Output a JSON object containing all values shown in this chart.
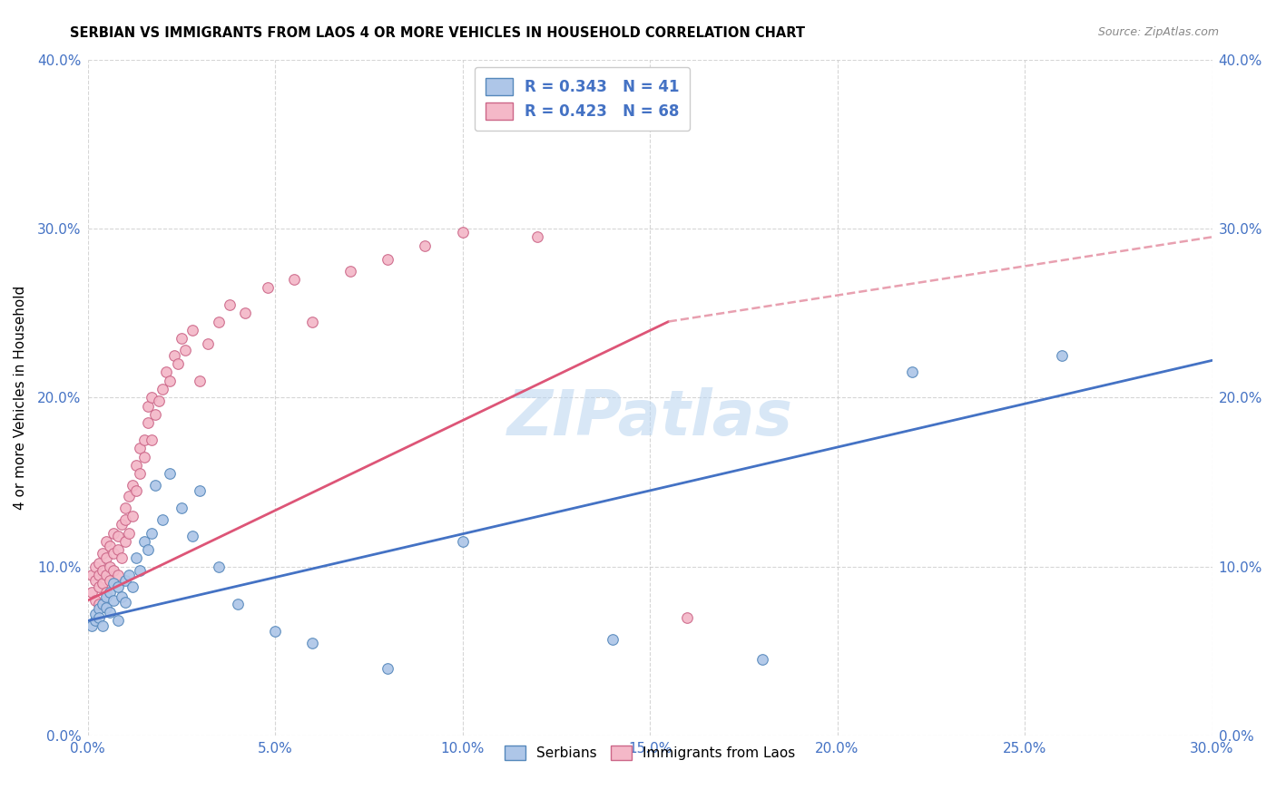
{
  "title": "SERBIAN VS IMMIGRANTS FROM LAOS 4 OR MORE VEHICLES IN HOUSEHOLD CORRELATION CHART",
  "source": "Source: ZipAtlas.com",
  "ylabel": "4 or more Vehicles in Household",
  "xlim": [
    0.0,
    0.3
  ],
  "ylim": [
    0.0,
    0.4
  ],
  "xticks": [
    0.0,
    0.05,
    0.1,
    0.15,
    0.2,
    0.25,
    0.3
  ],
  "yticks": [
    0.0,
    0.1,
    0.2,
    0.3,
    0.4
  ],
  "serbians_label": "Serbians",
  "laos_label": "Immigrants from Laos",
  "serbian_color": "#aec6e8",
  "serbian_edge": "#5588bb",
  "laos_color": "#f4b8c8",
  "laos_edge": "#cc6688",
  "trendline_serbian_color": "#4472c4",
  "trendline_laos_color": "#dd5577",
  "trendline_laos_dashed_color": "#e8a0b0",
  "watermark": "ZIPatlas",
  "r_serbian": "0.343",
  "n_serbian": "41",
  "r_laos": "0.423",
  "n_laos": "68",
  "serbian_x": [
    0.001,
    0.002,
    0.002,
    0.003,
    0.003,
    0.004,
    0.004,
    0.005,
    0.005,
    0.006,
    0.006,
    0.007,
    0.007,
    0.008,
    0.008,
    0.009,
    0.01,
    0.01,
    0.011,
    0.012,
    0.013,
    0.014,
    0.015,
    0.016,
    0.017,
    0.018,
    0.02,
    0.022,
    0.025,
    0.028,
    0.03,
    0.035,
    0.04,
    0.05,
    0.06,
    0.08,
    0.1,
    0.14,
    0.18,
    0.22,
    0.26
  ],
  "serbian_y": [
    0.065,
    0.068,
    0.072,
    0.075,
    0.07,
    0.078,
    0.065,
    0.082,
    0.076,
    0.073,
    0.085,
    0.08,
    0.09,
    0.068,
    0.088,
    0.082,
    0.079,
    0.092,
    0.095,
    0.088,
    0.105,
    0.098,
    0.115,
    0.11,
    0.12,
    0.148,
    0.128,
    0.155,
    0.135,
    0.118,
    0.145,
    0.1,
    0.078,
    0.062,
    0.055,
    0.04,
    0.115,
    0.057,
    0.045,
    0.215,
    0.225
  ],
  "laos_x": [
    0.001,
    0.001,
    0.002,
    0.002,
    0.002,
    0.003,
    0.003,
    0.003,
    0.003,
    0.004,
    0.004,
    0.004,
    0.005,
    0.005,
    0.005,
    0.005,
    0.006,
    0.006,
    0.006,
    0.007,
    0.007,
    0.007,
    0.008,
    0.008,
    0.008,
    0.009,
    0.009,
    0.01,
    0.01,
    0.01,
    0.011,
    0.011,
    0.012,
    0.012,
    0.013,
    0.013,
    0.014,
    0.014,
    0.015,
    0.015,
    0.016,
    0.016,
    0.017,
    0.017,
    0.018,
    0.019,
    0.02,
    0.021,
    0.022,
    0.023,
    0.024,
    0.025,
    0.026,
    0.028,
    0.03,
    0.032,
    0.035,
    0.038,
    0.042,
    0.048,
    0.055,
    0.06,
    0.07,
    0.08,
    0.09,
    0.1,
    0.12,
    0.16
  ],
  "laos_y": [
    0.085,
    0.095,
    0.08,
    0.092,
    0.1,
    0.088,
    0.095,
    0.078,
    0.102,
    0.09,
    0.098,
    0.108,
    0.085,
    0.095,
    0.105,
    0.115,
    0.092,
    0.1,
    0.112,
    0.098,
    0.108,
    0.12,
    0.095,
    0.11,
    0.118,
    0.105,
    0.125,
    0.115,
    0.128,
    0.135,
    0.12,
    0.142,
    0.13,
    0.148,
    0.145,
    0.16,
    0.155,
    0.17,
    0.165,
    0.175,
    0.185,
    0.195,
    0.175,
    0.2,
    0.19,
    0.198,
    0.205,
    0.215,
    0.21,
    0.225,
    0.22,
    0.235,
    0.228,
    0.24,
    0.21,
    0.232,
    0.245,
    0.255,
    0.25,
    0.265,
    0.27,
    0.245,
    0.275,
    0.282,
    0.29,
    0.298,
    0.295,
    0.07
  ]
}
